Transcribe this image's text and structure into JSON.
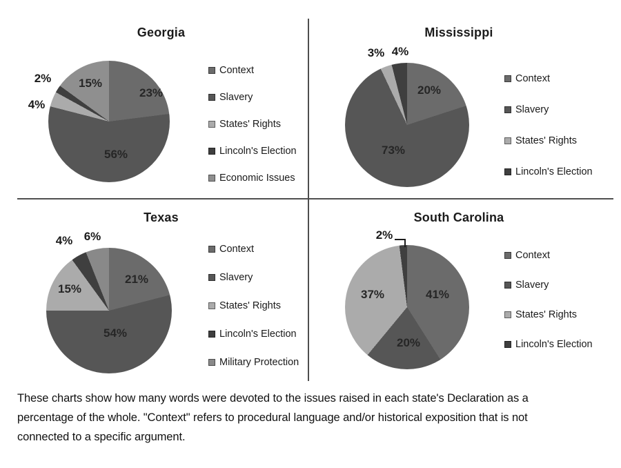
{
  "palette": {
    "Context": "#6b6b6b",
    "Slavery": "#565656",
    "States' Rights": "#ababab",
    "Lincoln's Election": "#3f3f3f",
    "Economic Issues": "#8f8f8f",
    "Military Protection": "#898989"
  },
  "chart_data": [
    {
      "type": "pie",
      "title": "Georgia",
      "legend_position": "right",
      "slices": [
        {
          "category": "Context",
          "value": 23,
          "label": "23%"
        },
        {
          "category": "Slavery",
          "value": 56,
          "label": "56%"
        },
        {
          "category": "States' Rights",
          "value": 4,
          "label": "4%"
        },
        {
          "category": "Lincoln's Election",
          "value": 2,
          "label": "2%"
        },
        {
          "category": "Economic Issues",
          "value": 15,
          "label": "15%"
        }
      ]
    },
    {
      "type": "pie",
      "title": "Mississippi",
      "legend_position": "right",
      "slices": [
        {
          "category": "Context",
          "value": 20,
          "label": "20%"
        },
        {
          "category": "Slavery",
          "value": 73,
          "label": "73%"
        },
        {
          "category": "States' Rights",
          "value": 3,
          "label": "3%"
        },
        {
          "category": "Lincoln's Election",
          "value": 4,
          "label": "4%"
        }
      ]
    },
    {
      "type": "pie",
      "title": "Texas",
      "legend_position": "right",
      "slices": [
        {
          "category": "Context",
          "value": 21,
          "label": "21%"
        },
        {
          "category": "Slavery",
          "value": 54,
          "label": "54%"
        },
        {
          "category": "States' Rights",
          "value": 15,
          "label": "15%"
        },
        {
          "category": "Lincoln's Election",
          "value": 4,
          "label": "4%"
        },
        {
          "category": "Military Protection",
          "value": 6,
          "label": "6%"
        }
      ]
    },
    {
      "type": "pie",
      "title": "South Carolina",
      "legend_position": "right",
      "slices": [
        {
          "category": "Context",
          "value": 41,
          "label": "41%"
        },
        {
          "category": "Slavery",
          "value": 20,
          "label": "20%"
        },
        {
          "category": "States' Rights",
          "value": 37,
          "label": "37%"
        },
        {
          "category": "Lincoln's Election",
          "value": 2,
          "label": "2%"
        }
      ]
    }
  ],
  "caption": {
    "lines": [
      "These charts show how many words were devoted to the issues raised in each state's Declaration as a",
      "percentage of the whole. \"Context\" refers to procedural language and/or historical exposition that is not",
      "connected to a specific argument."
    ]
  }
}
